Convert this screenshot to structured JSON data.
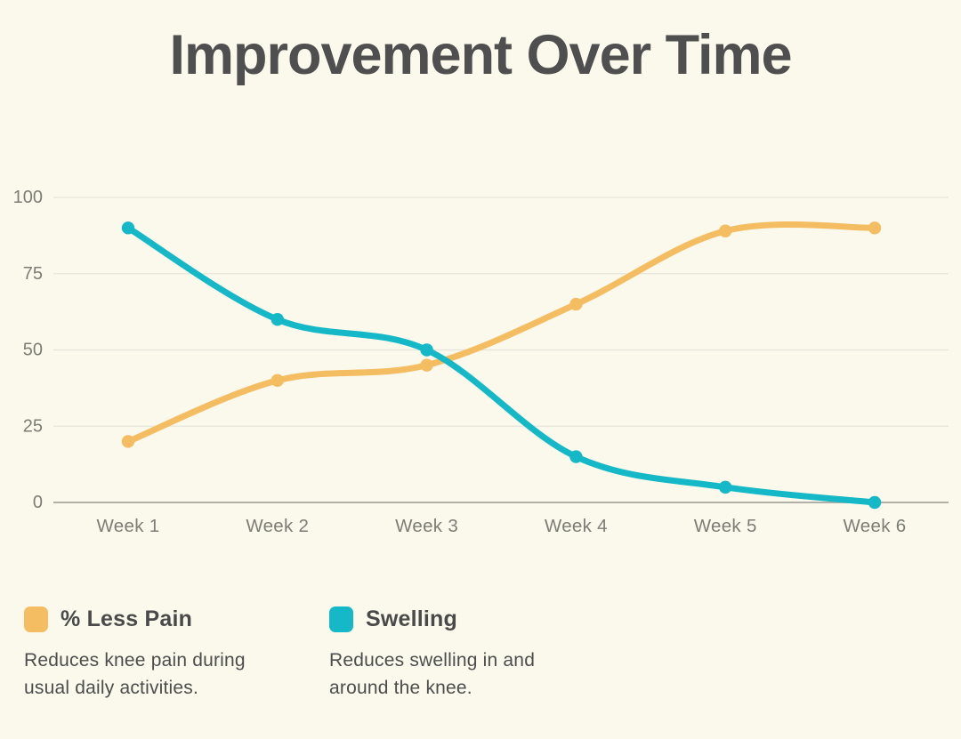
{
  "title": "Improvement Over Time",
  "chart_data": {
    "type": "line",
    "title": "Improvement Over Time",
    "categories": [
      "Week 1",
      "Week 2",
      "Week 3",
      "Week 4",
      "Week 5",
      "Week 6"
    ],
    "series": [
      {
        "name": "% Less Pain",
        "color": "#F5BD62",
        "values": [
          20,
          40,
          45,
          65,
          89,
          90
        ],
        "description": "Reduces knee pain during\nusual daily activities."
      },
      {
        "name": "Swelling",
        "color": "#14B8C6",
        "values": [
          90,
          60,
          50,
          15,
          5,
          0
        ],
        "description": "Reduces swelling in and\naround the knee."
      }
    ],
    "xlabel": "",
    "ylabel": "",
    "ylim": [
      0,
      100
    ],
    "yticks": [
      0,
      25,
      50,
      75,
      100
    ],
    "grid": true,
    "legend_position": "bottom"
  },
  "colors": {
    "background": "#FAF9EC",
    "title_text": "#4F4F4F",
    "axis_text": "#7E7D75",
    "gridline": "#E6E5DA",
    "axis_line": "#A6A59D"
  }
}
